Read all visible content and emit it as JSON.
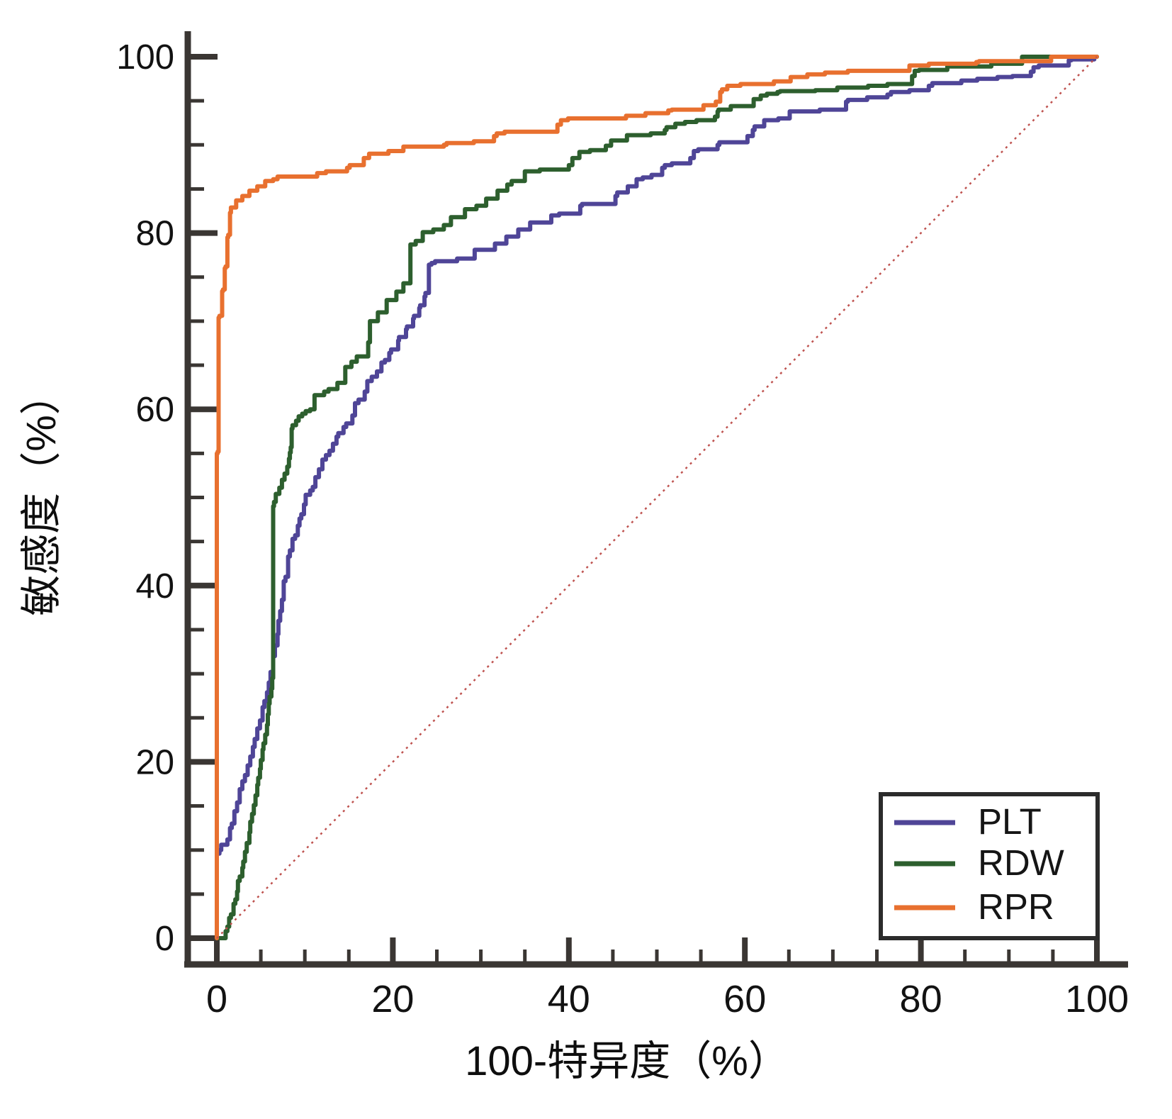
{
  "figure": {
    "background": "#ffffff",
    "axis_color": "#3a3633",
    "tick_label_color": "#121212"
  },
  "legend": {
    "position": "bottom-right",
    "items": [
      {
        "label": "PLT",
        "color": "#4f4597"
      },
      {
        "label": "RDW",
        "color": "#2d5f2e"
      },
      {
        "label": "RPR",
        "color": "#e8702f"
      }
    ]
  },
  "chart_data": {
    "type": "line",
    "subtype": "roc",
    "title": "",
    "xlabel": "100-特异度（%）",
    "ylabel": "敏感度（%）",
    "xlim": [
      0,
      100
    ],
    "ylim": [
      0,
      100
    ],
    "x_ticks": [
      0,
      20,
      40,
      60,
      80,
      100
    ],
    "y_ticks": [
      0,
      20,
      40,
      60,
      80,
      100
    ],
    "minor_tick_step": 5,
    "grid": false,
    "legend_position": "bottom-right",
    "series": [
      {
        "name": "PLT",
        "color": "#4f4597",
        "width": 6,
        "points": [
          [
            0,
            0
          ],
          [
            0,
            9
          ],
          [
            0.3,
            9.6
          ],
          [
            0.5,
            10
          ],
          [
            1.2,
            10.6
          ],
          [
            1.5,
            11.2
          ],
          [
            1.7,
            12.5
          ],
          [
            2,
            13
          ],
          [
            2.3,
            14.4
          ],
          [
            2.6,
            15.4
          ],
          [
            2.9,
            16.9
          ],
          [
            3.2,
            17.8
          ],
          [
            3.5,
            18.5
          ],
          [
            3.8,
            19.6
          ],
          [
            4.1,
            20.6
          ],
          [
            4.3,
            21.7
          ],
          [
            4.6,
            22.6
          ],
          [
            4.9,
            23.8
          ],
          [
            5.2,
            24.7
          ],
          [
            5.4,
            26.2
          ],
          [
            5.7,
            26.9
          ],
          [
            5.9,
            27.9
          ],
          [
            6.1,
            29
          ],
          [
            6.4,
            30.2
          ],
          [
            6.6,
            32
          ],
          [
            6.9,
            33.2
          ],
          [
            7,
            34.5
          ],
          [
            7.2,
            36
          ],
          [
            7.4,
            37.1
          ],
          [
            7.6,
            38.4
          ],
          [
            7.8,
            40.5
          ],
          [
            8.1,
            41
          ],
          [
            8.3,
            43.3
          ],
          [
            8.6,
            44
          ],
          [
            8.9,
            45.3
          ],
          [
            9.2,
            45.7
          ],
          [
            9.4,
            46.8
          ],
          [
            9.6,
            47.6
          ],
          [
            9.9,
            48.1
          ],
          [
            10.1,
            49.2
          ],
          [
            10.6,
            50.3
          ],
          [
            10.9,
            50.8
          ],
          [
            11.2,
            51.2
          ],
          [
            11.6,
            52.3
          ],
          [
            12,
            53.2
          ],
          [
            12.4,
            54.3
          ],
          [
            12.8,
            54.8
          ],
          [
            13.2,
            55.3
          ],
          [
            13.6,
            56.1
          ],
          [
            13.8,
            56.9
          ],
          [
            14.4,
            57.3
          ],
          [
            14.7,
            58
          ],
          [
            15.4,
            58.4
          ],
          [
            15.7,
            59.3
          ],
          [
            16.1,
            60.7
          ],
          [
            16.8,
            61.1
          ],
          [
            17.1,
            62
          ],
          [
            17.6,
            63.2
          ],
          [
            18.2,
            63.7
          ],
          [
            18.7,
            64.3
          ],
          [
            19.1,
            65.3
          ],
          [
            19.6,
            65.6
          ],
          [
            19.8,
            66.4
          ],
          [
            20.6,
            66.8
          ],
          [
            20.7,
            67.8
          ],
          [
            21.5,
            68.2
          ],
          [
            21.6,
            69.1
          ],
          [
            22.3,
            69.4
          ],
          [
            22.4,
            70.3
          ],
          [
            23,
            70.6
          ],
          [
            23.1,
            71.5
          ],
          [
            23.6,
            71.8
          ],
          [
            23.7,
            72.8
          ],
          [
            24.1,
            73.2
          ],
          [
            24.4,
            76.4
          ],
          [
            24.8,
            76.6
          ],
          [
            27.3,
            76.8
          ],
          [
            29.3,
            77.1
          ],
          [
            31.6,
            78.1
          ],
          [
            32.9,
            78.8
          ],
          [
            35.6,
            80.4
          ],
          [
            38,
            81.2
          ],
          [
            38.9,
            82
          ],
          [
            41.3,
            82.2
          ],
          [
            41.5,
            83.1
          ],
          [
            45.3,
            83.3
          ],
          [
            45.5,
            84.2
          ],
          [
            46.7,
            84.6
          ],
          [
            47.7,
            85.3
          ],
          [
            48.4,
            86.1
          ],
          [
            49.4,
            86.3
          ],
          [
            50.6,
            86.6
          ],
          [
            50.9,
            87.4
          ],
          [
            51.7,
            87.7
          ],
          [
            53.8,
            87.9
          ],
          [
            54.2,
            88.5
          ],
          [
            54.7,
            89.3
          ],
          [
            56.9,
            89.5
          ],
          [
            57.1,
            90
          ],
          [
            60.3,
            90.3
          ],
          [
            60.9,
            91
          ],
          [
            61.1,
            91.7
          ],
          [
            62.2,
            92.1
          ],
          [
            63.8,
            92.8
          ],
          [
            65.1,
            93
          ],
          [
            68.5,
            93.8
          ],
          [
            71.5,
            94
          ],
          [
            71.7,
            94.9
          ],
          [
            73.9,
            95.1
          ],
          [
            76.2,
            95.4
          ],
          [
            76.6,
            95.7
          ],
          [
            78.7,
            96
          ],
          [
            80.9,
            96.2
          ],
          [
            81.3,
            96.7
          ],
          [
            84.6,
            97
          ],
          [
            86.4,
            97.3
          ],
          [
            88.7,
            97.5
          ],
          [
            90.4,
            97.7
          ],
          [
            92.5,
            97.8
          ],
          [
            92.8,
            98.3
          ],
          [
            93.4,
            98.8
          ],
          [
            96.8,
            99
          ],
          [
            97.1,
            99.6
          ],
          [
            99.7,
            99.7
          ],
          [
            100,
            100
          ]
        ]
      },
      {
        "name": "RDW",
        "color": "#2d5f2e",
        "width": 6,
        "points": [
          [
            0,
            0
          ],
          [
            1,
            0
          ],
          [
            1.2,
            0.8
          ],
          [
            1.4,
            1.3
          ],
          [
            1.6,
            2.3
          ],
          [
            1.9,
            2.7
          ],
          [
            2.1,
            3.9
          ],
          [
            2.3,
            4.4
          ],
          [
            2.4,
            5.3
          ],
          [
            2.6,
            6.5
          ],
          [
            2.9,
            7
          ],
          [
            3,
            8
          ],
          [
            3.2,
            8.7
          ],
          [
            3.4,
            9.8
          ],
          [
            3.7,
            10.8
          ],
          [
            3.8,
            12
          ],
          [
            4,
            13.2
          ],
          [
            4.2,
            14.1
          ],
          [
            4.4,
            15.1
          ],
          [
            4.6,
            16.2
          ],
          [
            4.7,
            17.4
          ],
          [
            4.9,
            18.2
          ],
          [
            5,
            19.2
          ],
          [
            5.2,
            20.2
          ],
          [
            5.3,
            21.4
          ],
          [
            5.5,
            22.1
          ],
          [
            5.7,
            23.1
          ],
          [
            5.8,
            24.2
          ],
          [
            5.9,
            25.4
          ],
          [
            6,
            26.6
          ],
          [
            6.2,
            27.4
          ],
          [
            6.3,
            28.3
          ],
          [
            6.4,
            29.5
          ],
          [
            6.5,
            49
          ],
          [
            6.7,
            49.5
          ],
          [
            7.1,
            50.4
          ],
          [
            7.4,
            51.1
          ],
          [
            7.7,
            52
          ],
          [
            8,
            52.7
          ],
          [
            8.2,
            53.5
          ],
          [
            8.3,
            54.4
          ],
          [
            8.4,
            55.1
          ],
          [
            8.5,
            55.7
          ],
          [
            8.6,
            57.8
          ],
          [
            9,
            58.2
          ],
          [
            9.3,
            58.7
          ],
          [
            9.7,
            59.2
          ],
          [
            10.1,
            59.5
          ],
          [
            10.6,
            59.8
          ],
          [
            11.1,
            60
          ],
          [
            12.2,
            61.6
          ],
          [
            12.7,
            62
          ],
          [
            13.7,
            62.3
          ],
          [
            14.6,
            63
          ],
          [
            15.3,
            64.8
          ],
          [
            15.9,
            65.4
          ],
          [
            17.2,
            66
          ],
          [
            17.4,
            67.6
          ],
          [
            18.3,
            70
          ],
          [
            19.3,
            71
          ],
          [
            20.4,
            72.4
          ],
          [
            22,
            74.3
          ],
          [
            22.6,
            78.7
          ],
          [
            23.4,
            79.1
          ],
          [
            24.6,
            80.1
          ],
          [
            25.8,
            80.4
          ],
          [
            26.6,
            80.9
          ],
          [
            28.2,
            81.8
          ],
          [
            29.5,
            82.7
          ],
          [
            30.6,
            83.1
          ],
          [
            31.9,
            83.9
          ],
          [
            33,
            84.8
          ],
          [
            33.5,
            85.5
          ],
          [
            35,
            85.9
          ],
          [
            36.7,
            87
          ],
          [
            40,
            87.2
          ],
          [
            40.4,
            87.7
          ],
          [
            41.2,
            88.5
          ],
          [
            42.4,
            89.2
          ],
          [
            44.2,
            89.4
          ],
          [
            44.8,
            89.9
          ],
          [
            46.6,
            90.5
          ],
          [
            49.3,
            91.1
          ],
          [
            50.9,
            91.3
          ],
          [
            51.1,
            91.7
          ],
          [
            52.1,
            92
          ],
          [
            53.2,
            92.4
          ],
          [
            54.5,
            92.6
          ],
          [
            56.6,
            92.8
          ],
          [
            56.9,
            93.2
          ],
          [
            57,
            93.8
          ],
          [
            58.4,
            94
          ],
          [
            61,
            94.4
          ],
          [
            61.8,
            95.2
          ],
          [
            62.5,
            95.6
          ],
          [
            63.7,
            95.8
          ],
          [
            64,
            96
          ],
          [
            68,
            96.1
          ],
          [
            70.5,
            96.2
          ],
          [
            74,
            96.5
          ],
          [
            76.2,
            96.7
          ],
          [
            79,
            96.9
          ],
          [
            79.3,
            97.8
          ],
          [
            79.8,
            98.4
          ],
          [
            83,
            98.5
          ],
          [
            88,
            98.9
          ],
          [
            91.5,
            99.2
          ],
          [
            91.9,
            100
          ],
          [
            100,
            100
          ]
        ]
      },
      {
        "name": "RPR",
        "color": "#e8702f",
        "width": 6,
        "points": [
          [
            0,
            0
          ],
          [
            0.1,
            55
          ],
          [
            0.2,
            55.2
          ],
          [
            0.3,
            70.4
          ],
          [
            0.6,
            70.6
          ],
          [
            0.7,
            73.4
          ],
          [
            0.9,
            73.6
          ],
          [
            1,
            76
          ],
          [
            1.2,
            76.2
          ],
          [
            1.3,
            79.5
          ],
          [
            1.5,
            79.8
          ],
          [
            1.6,
            82.3
          ],
          [
            2.2,
            82.9
          ],
          [
            2.9,
            83.7
          ],
          [
            3.7,
            84.2
          ],
          [
            4.6,
            84.8
          ],
          [
            5.5,
            85.3
          ],
          [
            6.4,
            85.9
          ],
          [
            6.9,
            86.1
          ],
          [
            11.4,
            86.4
          ],
          [
            12.4,
            86.8
          ],
          [
            14.8,
            87
          ],
          [
            15.1,
            87.4
          ],
          [
            16.7,
            87.7
          ],
          [
            17.3,
            88.5
          ],
          [
            19.5,
            89
          ],
          [
            21.2,
            89.3
          ],
          [
            25.8,
            89.8
          ],
          [
            26.1,
            90
          ],
          [
            29.2,
            90.2
          ],
          [
            31.5,
            90.4
          ],
          [
            31.8,
            91
          ],
          [
            32.7,
            91.3
          ],
          [
            38.7,
            91.5
          ],
          [
            39.1,
            92.3
          ],
          [
            39.9,
            92.8
          ],
          [
            46.5,
            93
          ],
          [
            48.7,
            93.3
          ],
          [
            51.3,
            93.6
          ],
          [
            51.7,
            93.9
          ],
          [
            55.3,
            94
          ],
          [
            56.7,
            94.5
          ],
          [
            57.2,
            94.9
          ],
          [
            57.4,
            96
          ],
          [
            58,
            96.3
          ],
          [
            59.5,
            96.7
          ],
          [
            63.3,
            96.9
          ],
          [
            65.2,
            97.2
          ],
          [
            67.1,
            97.7
          ],
          [
            69.1,
            98
          ],
          [
            71.7,
            98.2
          ],
          [
            78.7,
            98.4
          ],
          [
            80.9,
            99
          ],
          [
            86.3,
            99.2
          ],
          [
            86.6,
            99.4
          ],
          [
            94.8,
            99.5
          ],
          [
            95.1,
            100
          ],
          [
            100,
            100
          ]
        ]
      },
      {
        "name": "reference-diagonal",
        "color": "#bf5350",
        "width": 2.5,
        "style": "dotted",
        "points": [
          [
            0,
            0
          ],
          [
            100,
            100
          ]
        ]
      }
    ]
  }
}
